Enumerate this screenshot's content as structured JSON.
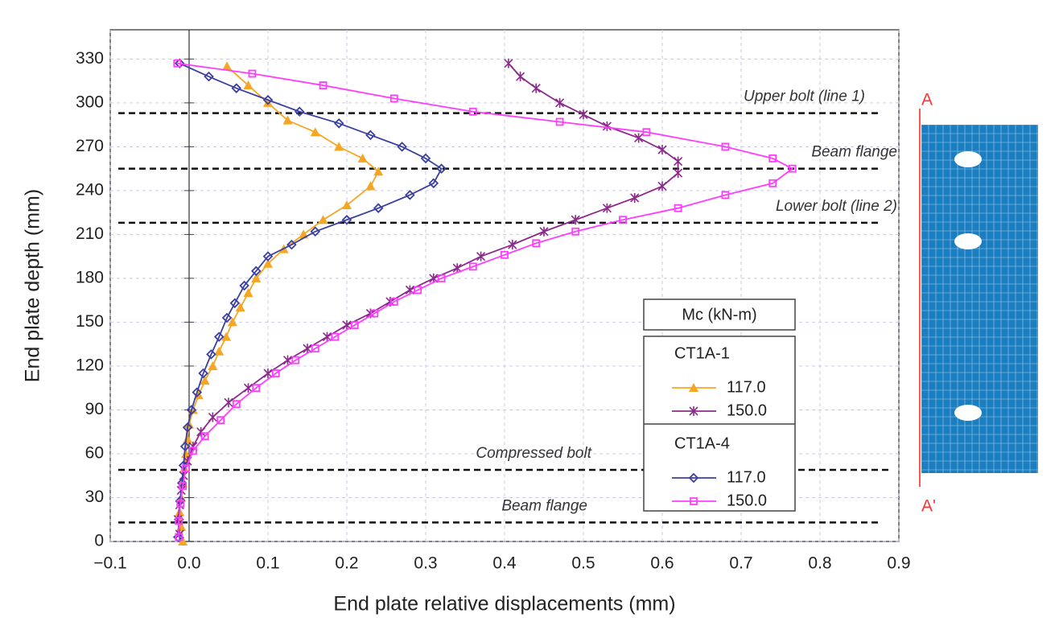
{
  "chart_data": {
    "type": "line",
    "x_label": "End plate relative displacements (mm)",
    "y_label": "End plate depth (mm)",
    "xlim": [
      -0.1,
      0.9
    ],
    "xticks": [
      {
        "value": -0.1,
        "label": "−0.1"
      },
      {
        "value": 0,
        "label": "0.0"
      },
      0.1,
      0.2,
      0.3,
      0.4,
      0.5,
      0.6,
      0.7,
      0.8,
      0.9
    ],
    "ylim": [
      0,
      350
    ],
    "yticks": [
      0,
      30,
      60,
      90,
      120,
      150,
      180,
      210,
      240,
      270,
      300,
      330
    ],
    "grid": true,
    "legend_title": "Mc  (kN-m)",
    "reference_lines": [
      {
        "label": "Upper bolt (line 1)",
        "value": 293
      },
      {
        "label": "Beam flange",
        "value": 255
      },
      {
        "label": "Lower bolt (line 2)",
        "value": 218
      },
      {
        "label": "Compressed bolt",
        "value": 49
      },
      {
        "label": "Beam flange",
        "value": 13
      }
    ],
    "side_labels": [
      "A",
      "A'"
    ],
    "series": [
      {
        "group": "CT1A-1",
        "name": "117.0",
        "color": "#f5a623",
        "marker": "triangle",
        "x": [
          0.048,
          0.075,
          0.1,
          0.125,
          0.16,
          0.19,
          0.22,
          0.24,
          0.23,
          0.2,
          0.17,
          0.145,
          0.12,
          0.1,
          0.085,
          0.075,
          0.065,
          0.055,
          0.047,
          0.038,
          0.03,
          0.02,
          0.012,
          0.005,
          0,
          -0.002,
          -0.004,
          -0.006,
          -0.008,
          -0.01,
          -0.012,
          -0.01,
          -0.008
        ],
        "values": [
          325,
          312,
          300,
          288,
          280,
          270,
          262,
          253,
          243,
          230,
          220,
          210,
          200,
          190,
          180,
          170,
          160,
          150,
          140,
          130,
          120,
          110,
          100,
          90,
          80,
          70,
          60,
          50,
          40,
          30,
          20,
          10,
          0
        ]
      },
      {
        "group": "CT1A-1",
        "name": "150.0",
        "color": "#8b2a8b",
        "marker": "star",
        "x": [
          0.405,
          0.42,
          0.44,
          0.47,
          0.5,
          0.53,
          0.57,
          0.6,
          0.62,
          0.62,
          0.6,
          0.565,
          0.53,
          0.49,
          0.45,
          0.41,
          0.37,
          0.34,
          0.31,
          0.28,
          0.255,
          0.23,
          0.2,
          0.175,
          0.15,
          0.125,
          0.1,
          0.075,
          0.05,
          0.03,
          0.015,
          0.005,
          -0.002,
          -0.007,
          -0.01,
          -0.012,
          -0.014,
          -0.012
        ],
        "values": [
          327,
          318,
          310,
          300,
          292,
          284,
          276,
          268,
          260,
          252,
          243,
          235,
          228,
          220,
          212,
          203,
          195,
          187,
          180,
          172,
          164,
          156,
          148,
          140,
          132,
          124,
          115,
          105,
          95,
          85,
          75,
          65,
          55,
          45,
          35,
          25,
          15,
          5
        ]
      },
      {
        "group": "CT1A-4",
        "name": "117.0",
        "color": "#3a3fa0",
        "marker": "diamond",
        "x": [
          -0.012,
          0.025,
          0.06,
          0.1,
          0.14,
          0.19,
          0.23,
          0.27,
          0.3,
          0.32,
          0.31,
          0.28,
          0.24,
          0.2,
          0.16,
          0.13,
          0.1,
          0.085,
          0.07,
          0.058,
          0.048,
          0.038,
          0.028,
          0.018,
          0.01,
          0.003,
          -0.002,
          -0.005,
          -0.007,
          -0.009,
          -0.011,
          -0.013,
          -0.014
        ],
        "values": [
          327,
          318,
          310,
          302,
          294,
          286,
          278,
          270,
          262,
          255,
          245,
          237,
          228,
          220,
          212,
          203,
          195,
          185,
          175,
          163,
          153,
          140,
          128,
          115,
          102,
          90,
          78,
          65,
          52,
          40,
          28,
          15,
          3
        ]
      },
      {
        "group": "CT1A-4",
        "name": "150.0",
        "color": "#ff3cff",
        "marker": "square",
        "x": [
          -0.015,
          0.08,
          0.17,
          0.26,
          0.36,
          0.47,
          0.58,
          0.68,
          0.74,
          0.765,
          0.74,
          0.68,
          0.62,
          0.55,
          0.49,
          0.44,
          0.4,
          0.36,
          0.32,
          0.29,
          0.26,
          0.235,
          0.21,
          0.185,
          0.16,
          0.135,
          0.11,
          0.085,
          0.06,
          0.04,
          0.02,
          0.005,
          -0.004,
          -0.008,
          -0.011,
          -0.013,
          -0.013
        ],
        "values": [
          327,
          320,
          312,
          303,
          294,
          287,
          280,
          270,
          262,
          255,
          245,
          237,
          228,
          220,
          212,
          204,
          196,
          188,
          180,
          172,
          164,
          156,
          148,
          140,
          132,
          124,
          115,
          105,
          94,
          83,
          72,
          62,
          50,
          38,
          26,
          14,
          3
        ]
      }
    ]
  }
}
